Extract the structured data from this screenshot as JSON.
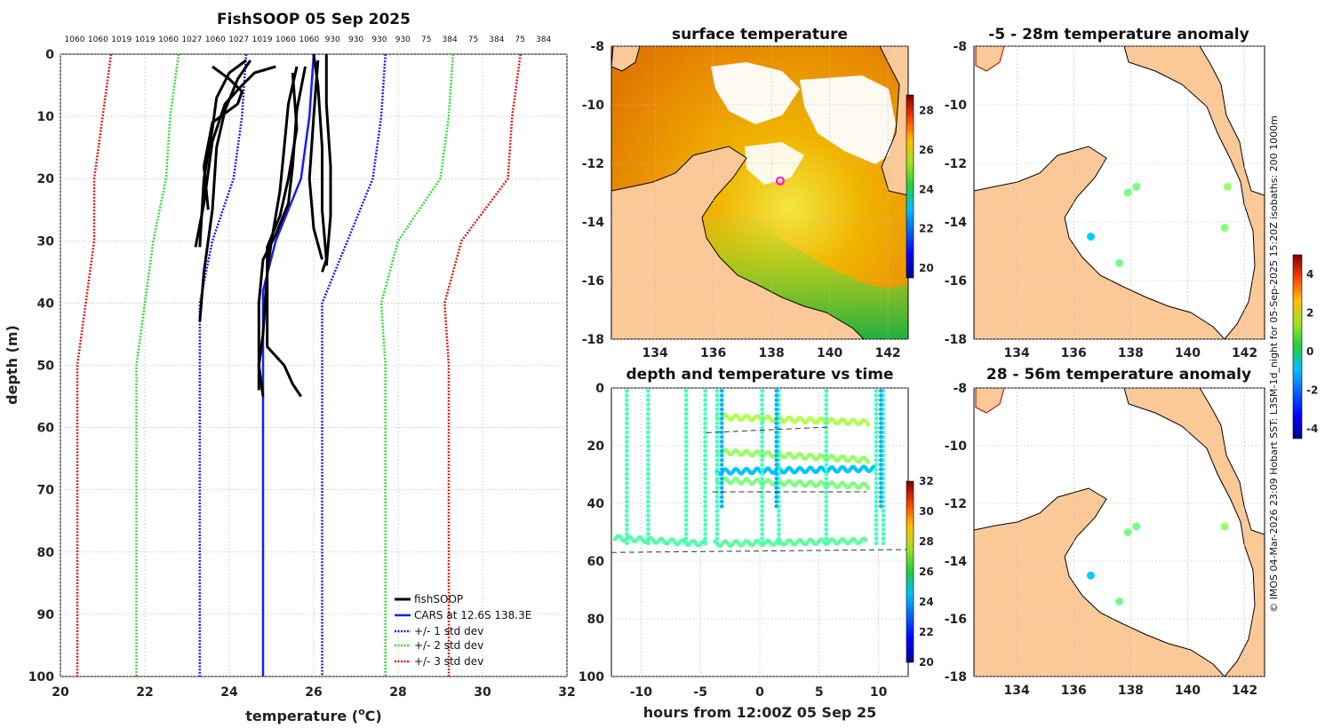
{
  "chart_data": [
    {
      "id": "profile",
      "type": "line",
      "title": "FishSOOP 05 Sep 2025",
      "xlabel": "temperature (oC)",
      "xlabel_base": "temperature (",
      "xlabel_sup": "o",
      "xlabel_unit": "C)",
      "ylabel": "depth (m)",
      "xlim": [
        20,
        32
      ],
      "ylim": [
        100,
        0
      ],
      "xticks": [
        20,
        22,
        24,
        26,
        28,
        30,
        32
      ],
      "yticks": [
        0,
        10,
        20,
        30,
        40,
        50,
        60,
        70,
        80,
        90,
        100
      ],
      "top_axis_labels": [
        "1060",
        "1060",
        "1019",
        "1019",
        "1060",
        "1027",
        "1060",
        "1027",
        "1019",
        "1060",
        "1060",
        "930",
        "930",
        "930",
        "930",
        "75",
        "384",
        "75",
        "384",
        "75",
        "384"
      ],
      "legend": [
        "fishSOOP",
        "CARS at 12.6S 138.3E",
        "+/- 1 std dev",
        "+/- 2 std dev",
        "+/- 3 std dev"
      ],
      "series": [
        {
          "name": "CARS at 12.6S 138.3E",
          "color": "#1a1aff",
          "style": "solid",
          "points": [
            [
              26.0,
              0
            ],
            [
              25.9,
              10
            ],
            [
              25.7,
              20
            ],
            [
              25.1,
              30
            ],
            [
              24.8,
              38
            ],
            [
              24.8,
              50
            ],
            [
              24.8,
              100
            ]
          ]
        },
        {
          "name": "-1 std",
          "color": "#1a1aff",
          "style": "dotted",
          "points": [
            [
              24.4,
              0
            ],
            [
              24.3,
              10
            ],
            [
              24.1,
              20
            ],
            [
              23.6,
              30
            ],
            [
              23.3,
              40
            ],
            [
              23.3,
              50
            ],
            [
              23.3,
              100
            ]
          ]
        },
        {
          "name": "+1 std",
          "color": "#1a1aff",
          "style": "dotted",
          "points": [
            [
              27.7,
              0
            ],
            [
              27.6,
              10
            ],
            [
              27.4,
              20
            ],
            [
              26.8,
              30
            ],
            [
              26.2,
              40
            ],
            [
              26.2,
              50
            ],
            [
              26.2,
              100
            ]
          ]
        },
        {
          "name": "-2 std",
          "color": "#33dd33",
          "style": "dotted",
          "points": [
            [
              22.8,
              0
            ],
            [
              22.6,
              10
            ],
            [
              22.5,
              20
            ],
            [
              22.2,
              30
            ],
            [
              22.0,
              40
            ],
            [
              21.8,
              50
            ],
            [
              21.8,
              100
            ]
          ]
        },
        {
          "name": "+2 std",
          "color": "#33dd33",
          "style": "dotted",
          "points": [
            [
              29.3,
              0
            ],
            [
              29.2,
              10
            ],
            [
              29.0,
              20
            ],
            [
              28.0,
              30
            ],
            [
              27.6,
              40
            ],
            [
              27.7,
              50
            ],
            [
              27.7,
              100
            ]
          ]
        },
        {
          "name": "-3 std",
          "color": "#dd1a1a",
          "style": "dotted",
          "points": [
            [
              21.2,
              0
            ],
            [
              21.0,
              10
            ],
            [
              20.8,
              20
            ],
            [
              20.8,
              30
            ],
            [
              20.6,
              40
            ],
            [
              20.4,
              50
            ],
            [
              20.4,
              100
            ]
          ]
        },
        {
          "name": "+3 std",
          "color": "#dd1a1a",
          "style": "dotted",
          "points": [
            [
              30.9,
              0
            ],
            [
              30.7,
              10
            ],
            [
              30.6,
              20
            ],
            [
              29.5,
              30
            ],
            [
              29.1,
              40
            ],
            [
              29.2,
              50
            ],
            [
              29.2,
              100
            ]
          ]
        },
        {
          "name": "fishSOOP",
          "color": "#000000",
          "style": "solid",
          "points": [
            [
              24.4,
              1
            ],
            [
              24.0,
              3
            ],
            [
              23.7,
              7
            ],
            [
              23.6,
              12
            ],
            [
              23.4,
              20
            ],
            [
              23.3,
              31
            ]
          ]
        },
        {
          "name": "fishSOOP",
          "color": "#000000",
          "style": "solid",
          "points": [
            [
              24.5,
              1
            ],
            [
              24.2,
              4
            ],
            [
              23.9,
              9
            ],
            [
              23.7,
              15
            ],
            [
              23.6,
              25
            ],
            [
              23.4,
              35
            ],
            [
              23.3,
              43
            ]
          ]
        },
        {
          "name": "fishSOOP",
          "color": "#000000",
          "style": "solid",
          "points": [
            [
              23.6,
              2
            ],
            [
              24.0,
              4
            ],
            [
              24.3,
              6
            ],
            [
              24.2,
              8
            ],
            [
              23.6,
              11
            ],
            [
              23.4,
              18
            ],
            [
              23.5,
              25
            ]
          ]
        },
        {
          "name": "fishSOOP",
          "color": "#000000",
          "style": "solid",
          "points": [
            [
              25.1,
              2
            ],
            [
              24.6,
              3
            ],
            [
              24.3,
              5
            ],
            [
              23.9,
              8
            ],
            [
              23.6,
              14
            ],
            [
              23.4,
              24
            ],
            [
              23.2,
              31
            ]
          ]
        },
        {
          "name": "fishSOOP",
          "color": "#000000",
          "style": "solid",
          "points": [
            [
              25.6,
              2
            ],
            [
              25.4,
              8
            ],
            [
              25.3,
              15
            ],
            [
              25.2,
              22
            ],
            [
              25.0,
              30
            ],
            [
              24.9,
              35
            ],
            [
              24.8,
              45
            ],
            [
              24.7,
              50
            ],
            [
              24.8,
              55
            ]
          ]
        },
        {
          "name": "fishSOOP",
          "color": "#000000",
          "style": "solid",
          "points": [
            [
              25.8,
              2
            ],
            [
              25.6,
              9
            ],
            [
              25.5,
              18
            ],
            [
              25.4,
              24
            ],
            [
              25.1,
              29
            ],
            [
              24.8,
              33
            ],
            [
              24.7,
              40
            ],
            [
              24.7,
              54
            ]
          ]
        },
        {
          "name": "fishSOOP",
          "color": "#000000",
          "style": "solid",
          "points": [
            [
              25.5,
              3
            ],
            [
              25.6,
              12
            ],
            [
              25.4,
              20
            ],
            [
              25.2,
              26
            ],
            [
              24.9,
              31
            ],
            [
              24.9,
              47
            ],
            [
              25.3,
              50
            ],
            [
              25.5,
              53
            ],
            [
              25.7,
              55
            ]
          ]
        },
        {
          "name": "fishSOOP",
          "color": "#000000",
          "style": "solid",
          "points": [
            [
              26.0,
              0
            ],
            [
              26.1,
              5
            ],
            [
              26.2,
              15
            ],
            [
              26.2,
              25
            ],
            [
              26.3,
              33
            ],
            [
              26.2,
              35
            ]
          ]
        },
        {
          "name": "fishSOOP",
          "color": "#000000",
          "style": "solid",
          "points": [
            [
              26.3,
              0
            ],
            [
              26.3,
              8
            ],
            [
              26.4,
              18
            ],
            [
              26.4,
              26
            ],
            [
              26.3,
              34
            ]
          ]
        },
        {
          "name": "fishSOOP",
          "color": "#000000",
          "style": "solid",
          "points": [
            [
              26.1,
              1
            ],
            [
              26.0,
              10
            ],
            [
              25.9,
              20
            ],
            [
              26.0,
              28
            ],
            [
              26.2,
              33
            ]
          ]
        }
      ]
    },
    {
      "id": "sst_map",
      "type": "heatmap",
      "title": "surface temperature",
      "xlim": [
        132.5,
        142.7
      ],
      "ylim": [
        -18,
        -8
      ],
      "xticks": [
        134,
        136,
        138,
        140,
        142
      ],
      "yticks": [
        -8,
        -10,
        -12,
        -14,
        -16,
        -18
      ],
      "colorbar": {
        "min": 19.5,
        "max": 28.8,
        "ticks": [
          20,
          22,
          24,
          26,
          28
        ]
      },
      "marker": {
        "lon": 138.3,
        "lat": -12.6
      }
    },
    {
      "id": "time_series",
      "type": "scatter",
      "title": "depth and temperature vs time",
      "xlabel": "hours from 12:00Z 05 Sep 25",
      "xlim": [
        -12.5,
        12.5
      ],
      "ylim": [
        100,
        0
      ],
      "xticks": [
        -10,
        -5,
        0,
        5,
        10
      ],
      "yticks": [
        0,
        20,
        40,
        60,
        80,
        100
      ],
      "colorbar": {
        "min": 20,
        "max": 32,
        "ticks": [
          20,
          22,
          24,
          26,
          28,
          30,
          32
        ]
      }
    },
    {
      "id": "anom_map_1",
      "type": "scatter",
      "title": "-5 - 28m temperature anomaly",
      "xlim": [
        132.5,
        142.7
      ],
      "ylim": [
        -18,
        -8
      ],
      "xticks": [
        134,
        136,
        138,
        140,
        142
      ],
      "yticks": [
        -8,
        -10,
        -12,
        -14,
        -16,
        -18
      ],
      "points": [
        {
          "lon": 137.9,
          "lat": -13.0,
          "anom": 0.2
        },
        {
          "lon": 138.2,
          "lat": -12.8,
          "anom": 0.2
        },
        {
          "lon": 137.6,
          "lat": -15.4,
          "anom": 0.1
        },
        {
          "lon": 136.6,
          "lat": -14.5,
          "anom": -1.4
        },
        {
          "lon": 141.4,
          "lat": -12.8,
          "anom": 0.5
        },
        {
          "lon": 141.3,
          "lat": -14.2,
          "anom": 0.3
        }
      ]
    },
    {
      "id": "anom_map_2",
      "type": "scatter",
      "title": "28 - 56m temperature anomaly",
      "xlim": [
        132.5,
        142.7
      ],
      "ylim": [
        -18,
        -8
      ],
      "xticks": [
        134,
        136,
        138,
        140,
        142
      ],
      "yticks": [
        -8,
        -10,
        -12,
        -14,
        -16,
        -18
      ],
      "points": [
        {
          "lon": 137.9,
          "lat": -13.0,
          "anom": 0.2
        },
        {
          "lon": 138.2,
          "lat": -12.8,
          "anom": 0.2
        },
        {
          "lon": 137.6,
          "lat": -15.4,
          "anom": 0.1
        },
        {
          "lon": 136.6,
          "lat": -14.5,
          "anom": -1.4
        },
        {
          "lon": 141.3,
          "lat": -12.8,
          "anom": 0.5
        }
      ]
    },
    {
      "id": "anom_colorbar",
      "type": "colorbar",
      "min": -4.5,
      "max": 5,
      "ticks": [
        4,
        2,
        0,
        -2,
        -4
      ]
    }
  ],
  "credit": "© IMOS 04-Mar-2026 23:09 Hobart SST: L3SM-1d_night for 05-Sep-2025 15:20Z isobaths: 200  1000m",
  "colors": {
    "land": "#fbc997",
    "black": "#000000",
    "grid": "#bbbbbb"
  }
}
